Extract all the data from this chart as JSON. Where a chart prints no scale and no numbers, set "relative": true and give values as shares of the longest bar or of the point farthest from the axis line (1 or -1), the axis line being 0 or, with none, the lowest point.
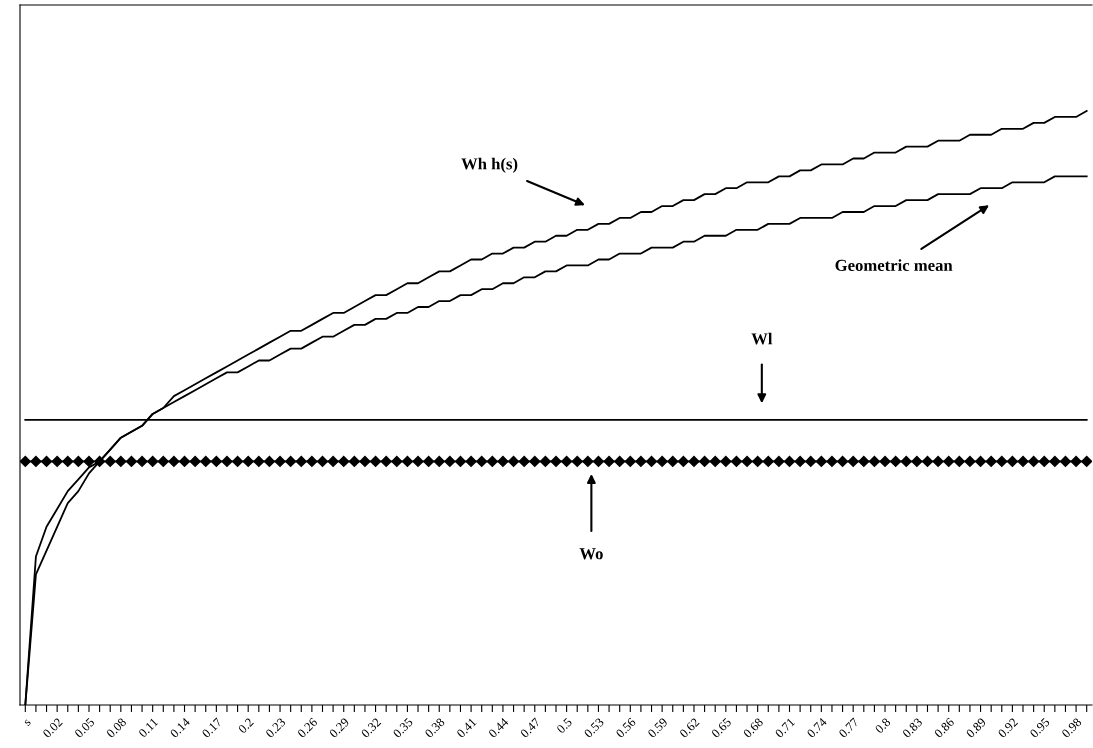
{
  "chart_data": {
    "type": "line",
    "relative": true,
    "annotations": [
      "Wh h(s)",
      "Geometric mean",
      "Wl",
      "Wo"
    ],
    "legend": false,
    "grid": false,
    "line_style": "solid",
    "categories": [
      "s",
      null,
      null,
      "0.02",
      null,
      null,
      "0.05",
      null,
      null,
      "0.08",
      null,
      null,
      "0.11",
      null,
      null,
      "0.14",
      null,
      null,
      "0.17",
      null,
      null,
      "0.2",
      null,
      null,
      "0.23",
      null,
      null,
      "0.26",
      null,
      null,
      "0.29",
      null,
      null,
      "0.32",
      null,
      null,
      "0.35",
      null,
      null,
      "0.38",
      null,
      null,
      "0.41",
      null,
      null,
      "0.44",
      null,
      null,
      "0.47",
      null,
      null,
      "0.5",
      null,
      null,
      "0.53",
      null,
      null,
      "0.56",
      null,
      null,
      "0.59",
      null,
      null,
      "0.62",
      null,
      null,
      "0.65",
      null,
      null,
      "0.68",
      null,
      null,
      "0.71",
      null,
      null,
      "0.74",
      null,
      null,
      "0.77",
      null,
      null,
      "0.8",
      null,
      null,
      "0.83",
      null,
      null,
      "0.86",
      null,
      null,
      "0.89",
      null,
      null,
      "0.92",
      null,
      null,
      "0.95",
      null,
      null,
      "0.98",
      null
    ],
    "series": [
      {
        "color": "#000000",
        "marker": "none",
        "values": [
          0,
          0.22,
          0.26,
          0.3,
          0.34,
          0.36,
          0.39,
          0.41,
          0.43,
          0.45,
          0.46,
          0.47,
          0.49,
          0.5,
          0.52,
          0.53,
          0.54,
          0.55,
          0.56,
          0.57,
          0.58,
          0.59,
          0.6,
          0.61,
          0.62,
          0.63,
          0.63,
          0.64,
          0.65,
          0.66,
          0.66,
          0.67,
          0.68,
          0.69,
          0.69,
          0.7,
          0.71,
          0.71,
          0.72,
          0.73,
          0.73,
          0.74,
          0.75,
          0.75,
          0.76,
          0.76,
          0.77,
          0.77,
          0.78,
          0.78,
          0.79,
          0.79,
          0.8,
          0.8,
          0.81,
          0.81,
          0.82,
          0.82,
          0.83,
          0.83,
          0.84,
          0.84,
          0.85,
          0.85,
          0.86,
          0.86,
          0.87,
          0.87,
          0.88,
          0.88,
          0.88,
          0.89,
          0.89,
          0.9,
          0.9,
          0.91,
          0.91,
          0.91,
          0.92,
          0.92,
          0.93,
          0.93,
          0.93,
          0.94,
          0.94,
          0.94,
          0.95,
          0.95,
          0.95,
          0.96,
          0.96,
          0.96,
          0.97,
          0.97,
          0.97,
          0.98,
          0.98,
          0.99,
          0.99,
          0.99,
          1
        ]
      },
      {
        "color": "#000000",
        "marker": "none",
        "values": [
          0,
          0.25,
          0.3,
          0.33,
          0.36,
          0.38,
          0.4,
          0.41,
          0.43,
          0.45,
          0.46,
          0.47,
          0.49,
          0.5,
          0.51,
          0.52,
          0.53,
          0.54,
          0.55,
          0.56,
          0.56,
          0.57,
          0.58,
          0.58,
          0.59,
          0.6,
          0.6,
          0.61,
          0.62,
          0.62,
          0.63,
          0.64,
          0.64,
          0.65,
          0.65,
          0.66,
          0.66,
          0.67,
          0.67,
          0.68,
          0.68,
          0.69,
          0.69,
          0.7,
          0.7,
          0.71,
          0.71,
          0.72,
          0.72,
          0.73,
          0.73,
          0.74,
          0.74,
          0.74,
          0.75,
          0.75,
          0.76,
          0.76,
          0.76,
          0.77,
          0.77,
          0.77,
          0.78,
          0.78,
          0.79,
          0.79,
          0.79,
          0.8,
          0.8,
          0.8,
          0.81,
          0.81,
          0.81,
          0.82,
          0.82,
          0.82,
          0.82,
          0.83,
          0.83,
          0.83,
          0.84,
          0.84,
          0.84,
          0.85,
          0.85,
          0.85,
          0.86,
          0.86,
          0.86,
          0.86,
          0.87,
          0.87,
          0.87,
          0.88,
          0.88,
          0.88,
          0.88,
          0.89,
          0.89,
          0.89,
          0.89
        ]
      },
      {
        "color": "#000000",
        "marker": "none",
        "values": [
          0.48,
          0.48,
          0.48,
          0.48,
          0.48,
          0.48,
          0.48,
          0.48,
          0.48,
          0.48,
          0.48,
          0.48,
          0.48,
          0.48,
          0.48,
          0.48,
          0.48,
          0.48,
          0.48,
          0.48,
          0.48,
          0.48,
          0.48,
          0.48,
          0.48,
          0.48,
          0.48,
          0.48,
          0.48,
          0.48,
          0.48,
          0.48,
          0.48,
          0.48,
          0.48,
          0.48,
          0.48,
          0.48,
          0.48,
          0.48,
          0.48,
          0.48,
          0.48,
          0.48,
          0.48,
          0.48,
          0.48,
          0.48,
          0.48,
          0.48,
          0.48,
          0.48,
          0.48,
          0.48,
          0.48,
          0.48,
          0.48,
          0.48,
          0.48,
          0.48,
          0.48,
          0.48,
          0.48,
          0.48,
          0.48,
          0.48,
          0.48,
          0.48,
          0.48,
          0.48,
          0.48,
          0.48,
          0.48,
          0.48,
          0.48,
          0.48,
          0.48,
          0.48,
          0.48,
          0.48,
          0.48,
          0.48,
          0.48,
          0.48,
          0.48,
          0.48,
          0.48,
          0.48,
          0.48,
          0.48,
          0.48,
          0.48,
          0.48,
          0.48,
          0.48,
          0.48,
          0.48,
          0.48,
          0.48,
          0.48,
          0.48
        ]
      },
      {
        "color": "#000000",
        "marker": "diamond",
        "values": [
          0.41,
          0.41,
          0.41,
          0.41,
          0.41,
          0.41,
          0.41,
          0.41,
          0.41,
          0.41,
          0.41,
          0.41,
          0.41,
          0.41,
          0.41,
          0.41,
          0.41,
          0.41,
          0.41,
          0.41,
          0.41,
          0.41,
          0.41,
          0.41,
          0.41,
          0.41,
          0.41,
          0.41,
          0.41,
          0.41,
          0.41,
          0.41,
          0.41,
          0.41,
          0.41,
          0.41,
          0.41,
          0.41,
          0.41,
          0.41,
          0.41,
          0.41,
          0.41,
          0.41,
          0.41,
          0.41,
          0.41,
          0.41,
          0.41,
          0.41,
          0.41,
          0.41,
          0.41,
          0.41,
          0.41,
          0.41,
          0.41,
          0.41,
          0.41,
          0.41,
          0.41,
          0.41,
          0.41,
          0.41,
          0.41,
          0.41,
          0.41,
          0.41,
          0.41,
          0.41,
          0.41,
          0.41,
          0.41,
          0.41,
          0.41,
          0.41,
          0.41,
          0.41,
          0.41,
          0.41,
          0.41,
          0.41,
          0.41,
          0.41,
          0.41,
          0.41,
          0.41,
          0.41,
          0.41,
          0.41,
          0.41,
          0.41,
          0.41,
          0.41,
          0.41,
          0.41,
          0.41,
          0.41,
          0.41,
          0.41,
          0.41
        ]
      }
    ]
  }
}
